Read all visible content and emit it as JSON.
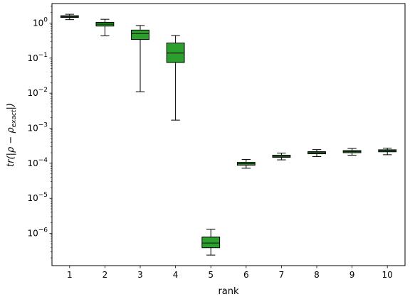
{
  "chart_data": {
    "type": "boxplot",
    "title": "",
    "xlabel": "rank",
    "ylabel": "tr(|ρ − ρ",
    "ylabel_subscript": "exact",
    "ylabel_close": "|)",
    "yscale": "log",
    "ylim": [
      1.2e-07,
      3.6
    ],
    "xlim": [
      0.5,
      10.5
    ],
    "grid": false,
    "legend": "none",
    "box_color": "#2ca02c",
    "median_color": "#1a1a1a",
    "categories": [
      "1",
      "2",
      "3",
      "4",
      "5",
      "6",
      "7",
      "8",
      "9",
      "10"
    ],
    "y_tick_labels": [
      {
        "base": "10",
        "exp": "−6",
        "value": 1e-06
      },
      {
        "base": "10",
        "exp": "−5",
        "value": 1e-05
      },
      {
        "base": "10",
        "exp": "−4",
        "value": 0.0001
      },
      {
        "base": "10",
        "exp": "−3",
        "value": 0.001
      },
      {
        "base": "10",
        "exp": "−2",
        "value": 0.01
      },
      {
        "base": "10",
        "exp": "−1",
        "value": 0.1
      },
      {
        "base": "10",
        "exp": "0",
        "value": 1
      }
    ],
    "boxes": [
      {
        "rank": 1,
        "whislo": 1.25,
        "q1": 1.45,
        "med": 1.52,
        "q3": 1.62,
        "whishi": 1.78
      },
      {
        "rank": 2,
        "whislo": 0.43,
        "q1": 0.82,
        "med": 0.93,
        "q3": 1.05,
        "whishi": 1.28
      },
      {
        "rank": 3,
        "whislo": 0.011,
        "q1": 0.34,
        "med": 0.5,
        "q3": 0.63,
        "whishi": 0.85
      },
      {
        "rank": 4,
        "whislo": 0.0017,
        "q1": 0.075,
        "med": 0.14,
        "q3": 0.27,
        "whishi": 0.44
      },
      {
        "rank": 5,
        "whislo": 2.4e-07,
        "q1": 3.9e-07,
        "med": 5.3e-07,
        "q3": 7.8e-07,
        "whishi": 1.3e-06
      },
      {
        "rank": 6,
        "whislo": 7.2e-05,
        "q1": 8.8e-05,
        "med": 9.7e-05,
        "q3": 0.000106,
        "whishi": 0.000128
      },
      {
        "rank": 7,
        "whislo": 0.000125,
        "q1": 0.000148,
        "med": 0.000158,
        "q3": 0.00017,
        "whishi": 0.000195
      },
      {
        "rank": 8,
        "whislo": 0.000155,
        "q1": 0.000186,
        "med": 0.0002,
        "q3": 0.000214,
        "whishi": 0.000245
      },
      {
        "rank": 9,
        "whislo": 0.00017,
        "q1": 0.0002,
        "med": 0.000215,
        "q3": 0.00023,
        "whishi": 0.000265
      },
      {
        "rank": 10,
        "whislo": 0.000175,
        "q1": 0.000212,
        "med": 0.000228,
        "q3": 0.000242,
        "whishi": 0.00027
      }
    ]
  }
}
